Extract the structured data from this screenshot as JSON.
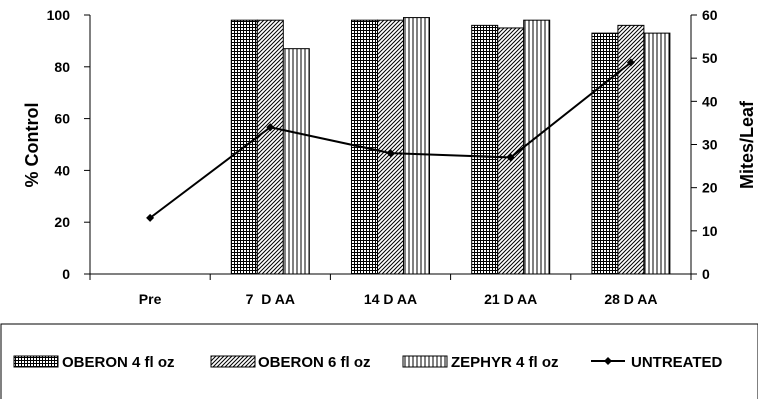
{
  "chart_data": {
    "type": "bar",
    "categories": [
      "Pre",
      "7  D AA",
      "14 D AA",
      "21 D AA",
      "28 D AA"
    ],
    "series": [
      {
        "name": "OBERON 4 fl oz",
        "axis": "left",
        "pattern": "grid",
        "values": [
          null,
          98,
          98,
          96,
          93
        ]
      },
      {
        "name": "OBERON 6 fl oz",
        "axis": "left",
        "pattern": "diagonal",
        "values": [
          null,
          98,
          98,
          95,
          96
        ]
      },
      {
        "name": "ZEPHYR 4 fl oz",
        "axis": "left",
        "pattern": "vertical",
        "values": [
          null,
          87,
          99,
          98,
          93
        ]
      },
      {
        "name": "UNTREATED",
        "axis": "right",
        "type": "line",
        "marker": "diamond",
        "values": [
          13,
          34,
          28,
          27,
          49
        ]
      }
    ],
    "ylabel": "% Control",
    "y2label": "Mites/Leaf",
    "ylim": [
      0,
      100
    ],
    "y2lim": [
      0,
      60
    ],
    "yticks": [
      "0",
      "20",
      "40",
      "60",
      "80",
      "100"
    ],
    "y2ticks": [
      "0",
      "10",
      "20",
      "30",
      "40",
      "50",
      "60"
    ],
    "grid": false,
    "legend": "bottom",
    "colors": {
      "bar_fill": "#ffffff",
      "pattern": "#000000",
      "stroke": "#000000"
    }
  }
}
